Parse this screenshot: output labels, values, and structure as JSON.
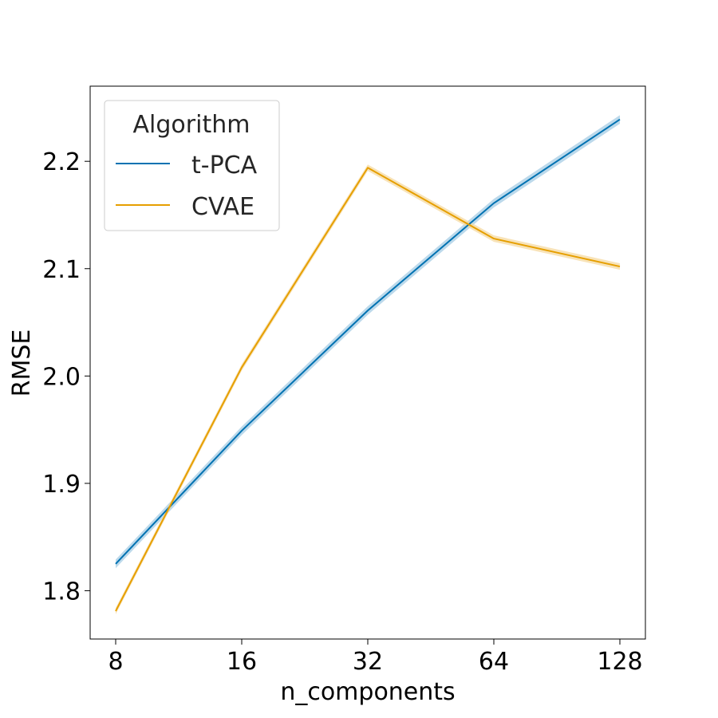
{
  "chart_data": {
    "type": "line",
    "x": [
      8,
      16,
      32,
      64,
      128
    ],
    "x_scale": "log2",
    "xlabel": "n_components",
    "ylabel": "RMSE",
    "ylim": [
      1.755,
      2.27
    ],
    "x_ticks": [
      "8",
      "16",
      "32",
      "64",
      "128"
    ],
    "y_ticks": [
      "1.8",
      "1.9",
      "2.0",
      "2.1",
      "2.2"
    ],
    "y_tick_values": [
      1.8,
      1.9,
      2.0,
      2.1,
      2.2
    ],
    "grid": false,
    "legend": {
      "title": "Algorithm",
      "placement": "top-left"
    },
    "series": [
      {
        "name": "t-PCA",
        "color": "#0072b2",
        "band_color": "#a6cce4",
        "values": [
          1.825,
          1.949,
          2.061,
          2.161,
          2.239
        ],
        "band": 0.004
      },
      {
        "name": "CVAE",
        "color": "#e69f00",
        "band_color": "#f5d9a0",
        "values": [
          1.781,
          2.008,
          2.194,
          2.128,
          2.102
        ],
        "band": 0.003
      }
    ]
  }
}
